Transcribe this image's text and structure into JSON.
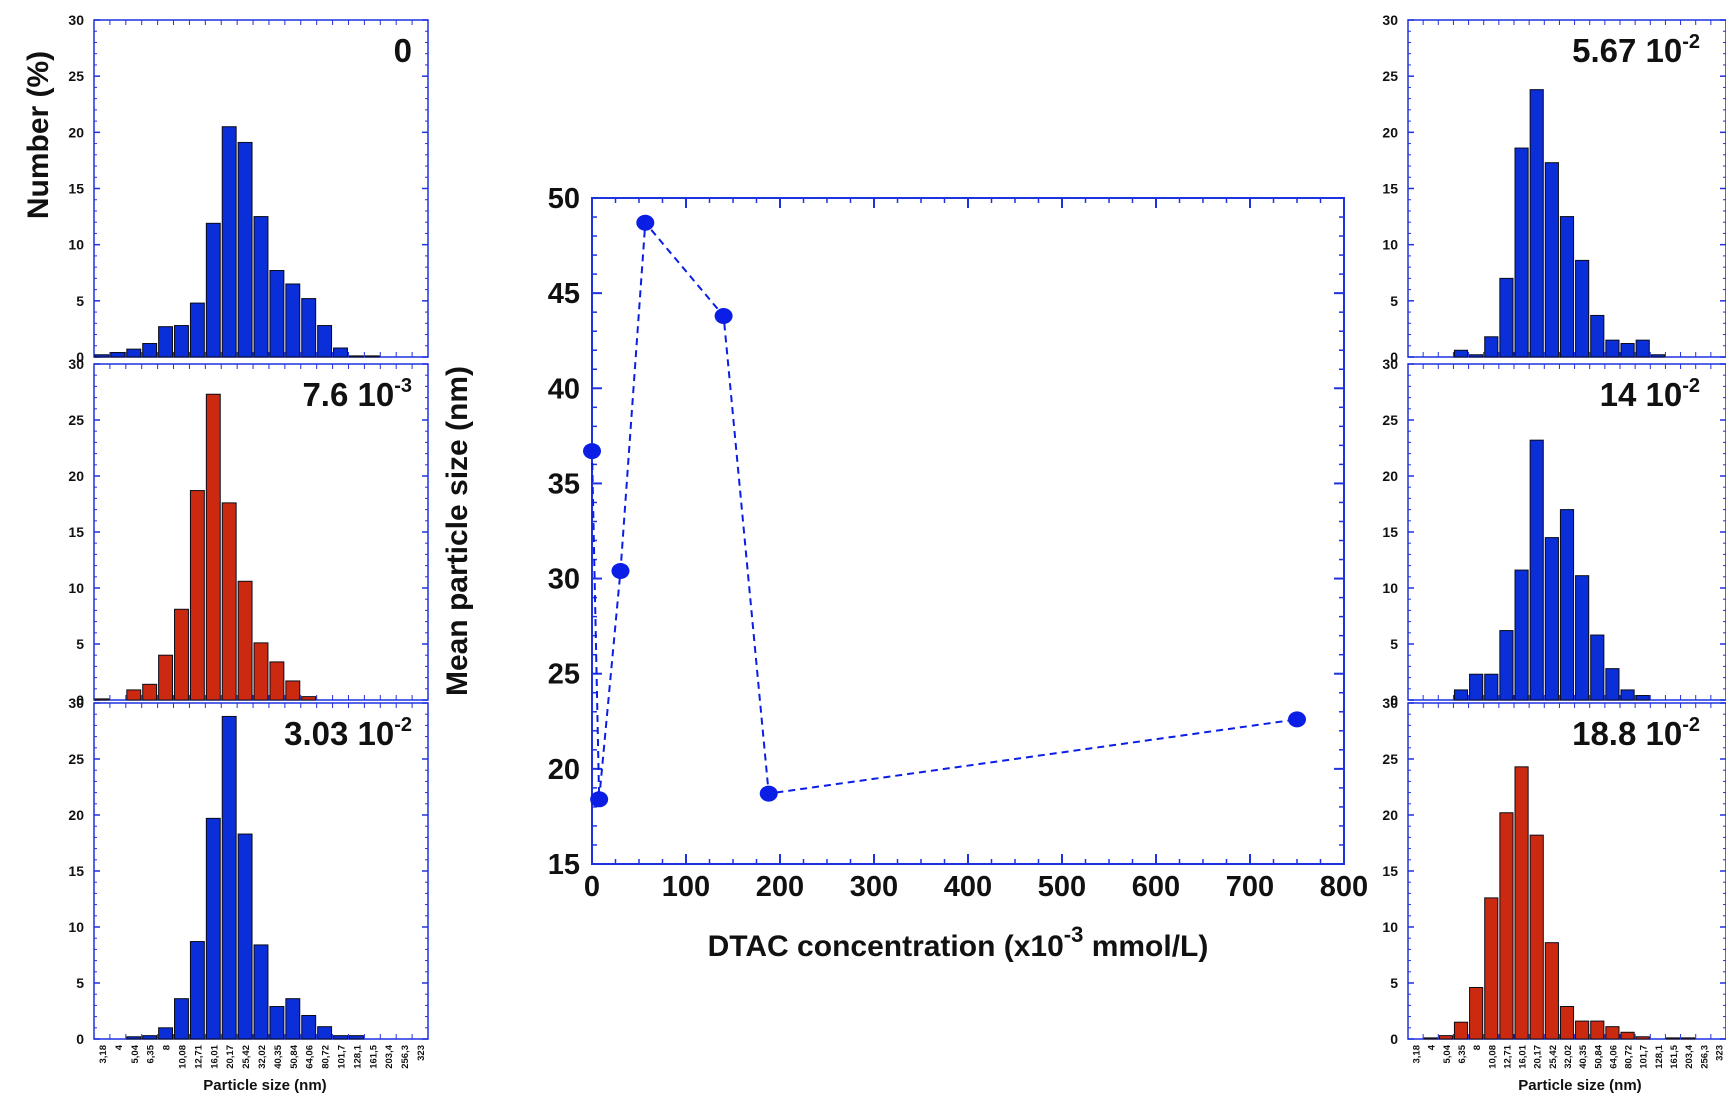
{
  "shared": {
    "size_ticks": [
      "3,18",
      "4",
      "5,04",
      "6,35",
      "8",
      "10,08",
      "12,71",
      "16,01",
      "20,17",
      "25,42",
      "32,02",
      "40,35",
      "50,84",
      "64,06",
      "80,72",
      "101,7",
      "128,1",
      "161,5",
      "203,4",
      "256,3",
      "323"
    ],
    "y_ticks": [
      "0",
      "5",
      "10",
      "15",
      "20",
      "25",
      "30"
    ],
    "y_label": "Number (%)",
    "x_label": "Particle size (nm)"
  },
  "chart_data": [
    {
      "type": "line",
      "xlabel": "DTAC concentration (x10",
      "xlabel_sup": "-3",
      "xlabel_suffix": " mmol/L)",
      "ylabel": "Mean particle size (nm)",
      "xlim": [
        0,
        800
      ],
      "ylim": [
        15,
        50
      ],
      "x_ticks": [
        "0",
        "100",
        "200",
        "300",
        "400",
        "500",
        "600",
        "700",
        "800"
      ],
      "y_ticks": [
        "15",
        "20",
        "25",
        "30",
        "35",
        "40",
        "45",
        "50"
      ],
      "line_style": "dashed",
      "color": "#0a1ee6",
      "x": [
        0,
        7.6,
        30.3,
        56.7,
        140,
        188,
        750
      ],
      "y": [
        36.7,
        18.4,
        30.4,
        48.7,
        43.8,
        18.7,
        22.6
      ]
    },
    {
      "type": "bar",
      "label": "0",
      "color": "#0a2ed8",
      "ylim": [
        0,
        30
      ],
      "values": [
        0.2,
        0.4,
        0.7,
        1.2,
        2.7,
        2.8,
        4.8,
        11.9,
        20.5,
        19.1,
        12.5,
        7.7,
        6.5,
        5.2,
        2.8,
        0.8,
        0.1,
        0.1,
        0,
        0,
        0
      ]
    },
    {
      "type": "bar",
      "label": "7.6 10",
      "label_exp": "-3",
      "color": "#cc2a10",
      "ylim": [
        0,
        30
      ],
      "values": [
        0.1,
        0,
        0.9,
        1.4,
        4.0,
        8.1,
        18.7,
        27.3,
        17.6,
        10.6,
        5.1,
        3.4,
        1.7,
        0.3,
        0,
        0,
        0,
        0,
        0,
        0,
        0
      ]
    },
    {
      "type": "bar",
      "label": "3.03 10",
      "label_exp": "-2",
      "color": "#0a2ed8",
      "ylim": [
        0,
        30
      ],
      "values": [
        0,
        0,
        0.2,
        0.3,
        1.0,
        3.6,
        8.7,
        19.7,
        28.8,
        18.3,
        8.4,
        2.9,
        3.6,
        2.1,
        1.1,
        0.3,
        0.3,
        0,
        0,
        0,
        0
      ]
    },
    {
      "type": "bar",
      "label": "5.67 10",
      "label_exp": "-2",
      "color": "#0a2ed8",
      "ylim": [
        0,
        30
      ],
      "values": [
        0,
        0,
        0,
        0.6,
        0.2,
        1.8,
        7.0,
        18.6,
        23.8,
        17.3,
        12.5,
        8.6,
        3.7,
        1.5,
        1.2,
        1.5,
        0.2,
        0,
        0,
        0,
        0
      ]
    },
    {
      "type": "bar",
      "label": "14 10",
      "label_exp": "-2",
      "color": "#0a2ed8",
      "ylim": [
        0,
        30
      ],
      "values": [
        0,
        0,
        0,
        0.9,
        2.3,
        2.3,
        6.2,
        11.6,
        23.2,
        14.5,
        17.0,
        11.1,
        5.8,
        2.8,
        0.9,
        0.4,
        0,
        0,
        0,
        0,
        0
      ]
    },
    {
      "type": "bar",
      "label": "18.8 10",
      "label_exp": "-2",
      "color": "#cc2a10",
      "ylim": [
        0,
        30
      ],
      "values": [
        0,
        0.1,
        0.3,
        1.5,
        4.6,
        12.6,
        20.2,
        24.3,
        18.2,
        8.6,
        2.9,
        1.6,
        1.6,
        1.1,
        0.6,
        0.2,
        0,
        0.1,
        0.1,
        0,
        0
      ]
    }
  ]
}
